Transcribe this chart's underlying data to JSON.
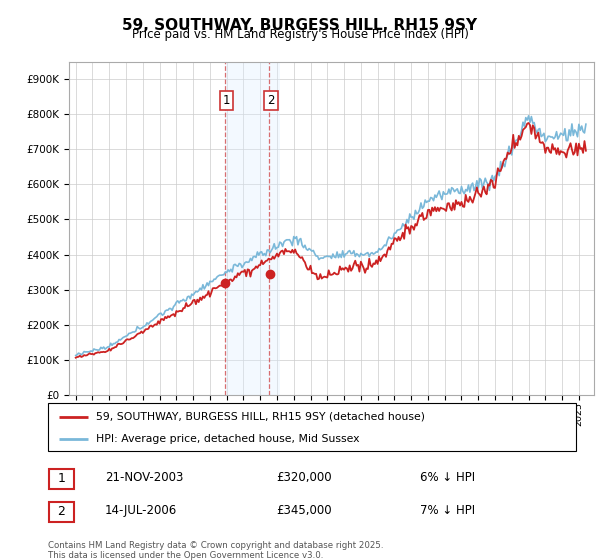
{
  "title": "59, SOUTHWAY, BURGESS HILL, RH15 9SY",
  "subtitle": "Price paid vs. HM Land Registry's House Price Index (HPI)",
  "legend_line1": "59, SOUTHWAY, BURGESS HILL, RH15 9SY (detached house)",
  "legend_line2": "HPI: Average price, detached house, Mid Sussex",
  "transaction1_date": "21-NOV-2003",
  "transaction1_price": "£320,000",
  "transaction1_hpi": "6% ↓ HPI",
  "transaction2_date": "14-JUL-2006",
  "transaction2_price": "£345,000",
  "transaction2_hpi": "7% ↓ HPI",
  "footer": "Contains HM Land Registry data © Crown copyright and database right 2025.\nThis data is licensed under the Open Government Licence v3.0.",
  "hpi_color": "#7ab8d9",
  "price_color": "#cc2222",
  "marker_color": "#cc2222",
  "band_color": "#ddeeff",
  "ylim_min": 0,
  "ylim_max": 950000,
  "transaction1_year": 2003.9,
  "transaction2_year": 2006.55,
  "transaction1_price_val": 320000,
  "transaction2_price_val": 345000,
  "yticks": [
    0,
    100000,
    200000,
    300000,
    400000,
    500000,
    600000,
    700000,
    800000,
    900000
  ],
  "ytick_labels": [
    "£0",
    "£100K",
    "£200K",
    "£300K",
    "£400K",
    "£500K",
    "£600K",
    "£700K",
    "£800K",
    "£900K"
  ],
  "xstart": 1995,
  "xend": 2025
}
